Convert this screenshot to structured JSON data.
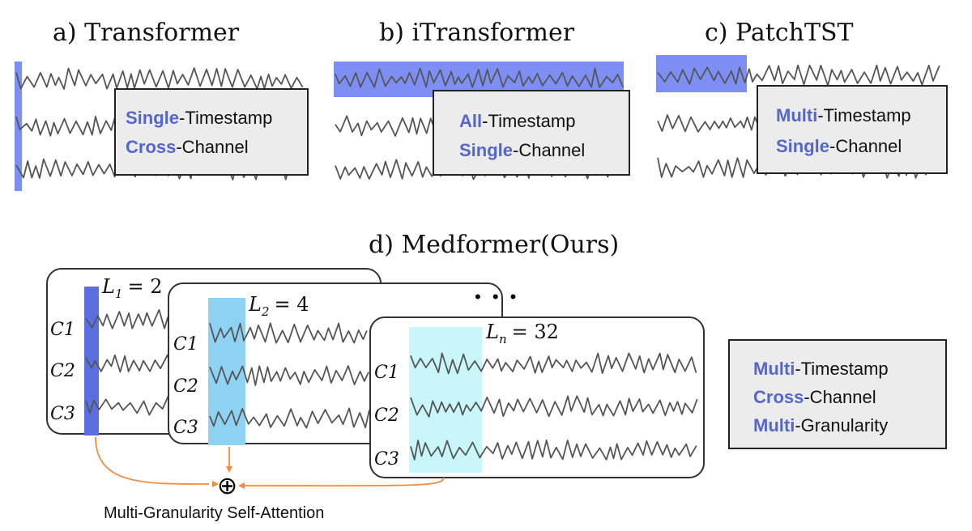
{
  "colors": {
    "accent": "#5566cc",
    "highlight_blue": "#7d8ff2",
    "highlight_dark": "#5b6fe0",
    "highlight_light": "#8fd3f4",
    "highlight_cyan": "#c9f6f8",
    "arrow": "#f28c3c",
    "box_fill": "#ececec"
  },
  "panels": {
    "a": {
      "title": "a) Transformer",
      "line1_kw": "Single",
      "line1_rest": "-Timestamp",
      "line2_kw": "Cross",
      "line2_rest": "-Channel"
    },
    "b": {
      "title": "b) iTransformer",
      "line1_kw": "All",
      "line1_rest": "-Timestamp",
      "line2_kw": "Single",
      "line2_rest": "-Channel"
    },
    "c": {
      "title": "c) PatchTST",
      "line1_kw": "Multi",
      "line1_rest": "-Timestamp",
      "line2_kw": "Single",
      "line2_rest": "-Channel"
    },
    "d": {
      "title": "d) Medformer(Ours)",
      "line1_kw": "Multi",
      "line1_rest": "-Timestamp",
      "line2_kw": "Cross",
      "line2_rest": "-Channel",
      "line3_kw": "Multi",
      "line3_rest": "-Granularity",
      "cards": [
        {
          "label": "L",
          "sub": "1",
          "value": "= 2"
        },
        {
          "label": "L",
          "sub": "2",
          "value": "= 4"
        },
        {
          "label": "L",
          "sub": "n",
          "value": "= 32"
        }
      ],
      "channels": [
        "C1",
        "C2",
        "C3"
      ],
      "ellipsis": "• • •",
      "aggregator": "⊕",
      "caption": "Multi-Granularity Self-Attention"
    }
  }
}
